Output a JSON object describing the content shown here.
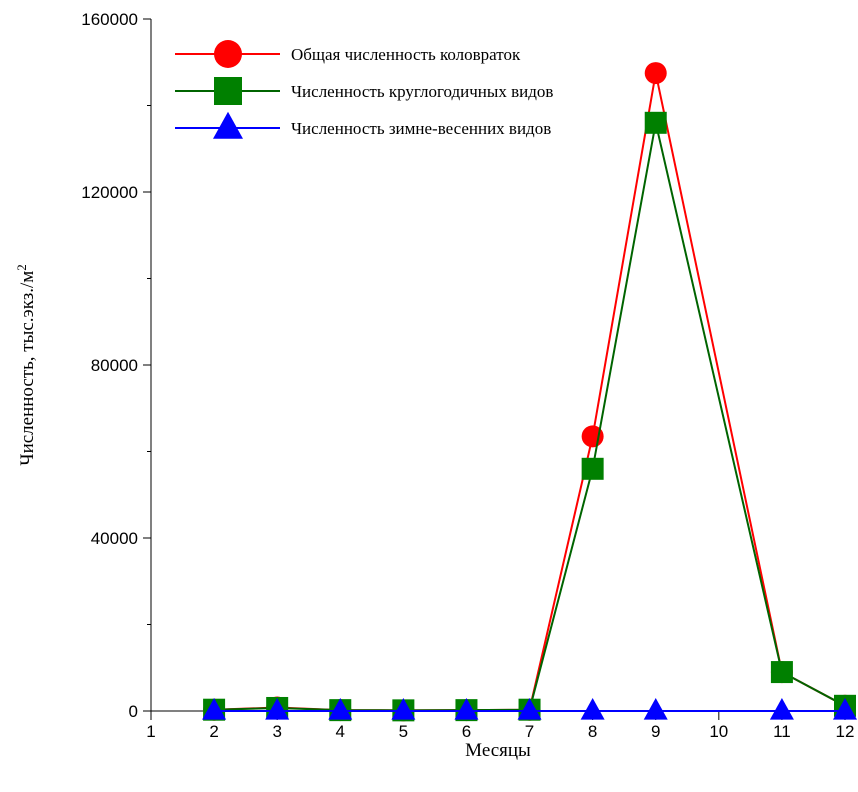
{
  "chart_data": {
    "type": "line",
    "xlabel": "Месяцы",
    "ylabel": "Численность, тыс.экз./м",
    "ylabel_sup": "2",
    "xlim": [
      1,
      12
    ],
    "ylim": [
      0,
      160000
    ],
    "x_ticks": [
      1,
      2,
      3,
      4,
      5,
      6,
      7,
      8,
      9,
      10,
      11,
      12
    ],
    "y_ticks": [
      0,
      40000,
      80000,
      120000,
      160000
    ],
    "grid": false,
    "legend_position": "top-left",
    "series": [
      {
        "name": "Общая численность коловраток",
        "color": "#ff0000",
        "marker": "circle",
        "x": [
          2,
          3,
          4,
          5,
          6,
          7,
          8,
          9,
          11,
          12
        ],
        "y": [
          300,
          800,
          200,
          150,
          200,
          300,
          63500,
          147500,
          9000,
          1200
        ]
      },
      {
        "name": "Численность круглогодичных видов",
        "color": "#008000",
        "line_color": "#006400",
        "marker": "square",
        "x": [
          2,
          3,
          4,
          5,
          6,
          7,
          8,
          9,
          11,
          12
        ],
        "y": [
          300,
          700,
          200,
          150,
          200,
          300,
          56000,
          136000,
          9000,
          1200
        ]
      },
      {
        "name": "Численность зимне-весенних видов",
        "color": "#0000ff",
        "marker": "triangle",
        "x": [
          2,
          3,
          4,
          5,
          6,
          7,
          8,
          9,
          11,
          12
        ],
        "y": [
          0,
          0,
          0,
          0,
          0,
          0,
          0,
          0,
          0,
          0
        ]
      }
    ]
  }
}
